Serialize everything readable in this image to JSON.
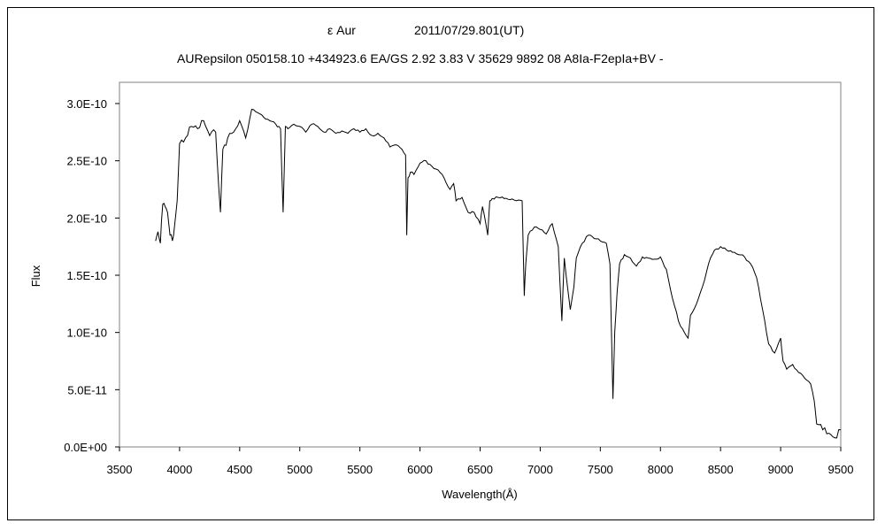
{
  "chart_data": {
    "type": "line",
    "title": "ε Aur",
    "date": "2011/07/29.801(UT)",
    "subtitle": "AURepsilon 050158.10 +434923.6 EA/GS 2.92 3.83 V 35629 9892 08 A8Ia-F2epIa+BV -",
    "xlabel": "Wavelength(Å)",
    "ylabel": "Flux",
    "xlim": [
      3500,
      9500
    ],
    "ylim": [
      0,
      3e-10
    ],
    "xticks": [
      "3500",
      "4000",
      "4500",
      "5000",
      "5500",
      "6000",
      "6500",
      "7000",
      "7500",
      "8000",
      "8500",
      "9000",
      "9500"
    ],
    "xtick_values": [
      3500,
      4000,
      4500,
      5000,
      5500,
      6000,
      6500,
      7000,
      7500,
      8000,
      8500,
      9000,
      9500
    ],
    "yticks": [
      "0.0E+00",
      "5.0E-11",
      "1.0E-10",
      "1.5E-10",
      "2.0E-10",
      "2.5E-10",
      "3.0E-10"
    ],
    "ytick_values": [
      0,
      5e-11,
      1e-10,
      1.5e-10,
      2e-10,
      2.5e-10,
      3e-10
    ],
    "grid": false,
    "line_color": "#000000",
    "series": [
      {
        "x": [
          3800,
          3820,
          3840,
          3860,
          3880,
          3900,
          3920,
          3940,
          3960,
          3980,
          4000,
          4050,
          4100,
          4150,
          4200,
          4250,
          4300,
          4340,
          4360,
          4400,
          4450,
          4500,
          4550,
          4600,
          4650,
          4700,
          4750,
          4800,
          4840,
          4861,
          4880,
          4900,
          4950,
          5000,
          5050,
          5100,
          5150,
          5200,
          5250,
          5300,
          5350,
          5400,
          5450,
          5500,
          5550,
          5600,
          5650,
          5700,
          5750,
          5800,
          5850,
          5880,
          5890,
          5900,
          5920,
          5950,
          6000,
          6050,
          6100,
          6150,
          6200,
          6250,
          6280,
          6300,
          6350,
          6400,
          6450,
          6500,
          6520,
          6563,
          6580,
          6600,
          6650,
          6700,
          6750,
          6800,
          6850,
          6867,
          6880,
          6900,
          6950,
          7000,
          7050,
          7100,
          7150,
          7180,
          7200,
          7250,
          7280,
          7300,
          7350,
          7400,
          7450,
          7500,
          7550,
          7580,
          7605,
          7620,
          7640,
          7660,
          7700,
          7750,
          7800,
          7850,
          7900,
          7950,
          8000,
          8050,
          8100,
          8150,
          8200,
          8230,
          8250,
          8300,
          8350,
          8400,
          8450,
          8500,
          8550,
          8600,
          8650,
          8700,
          8750,
          8800,
          8850,
          8900,
          8950,
          9000,
          9020,
          9050,
          9100,
          9150,
          9200,
          9250,
          9280,
          9300,
          9350,
          9400,
          9450,
          9500
        ],
        "values": [
          1.8e-10,
          1.88e-10,
          1.78e-10,
          2.12e-10,
          2.1e-10,
          2.05e-10,
          1.85e-10,
          1.8e-10,
          1.95e-10,
          2.15e-10,
          2.65e-10,
          2.7e-10,
          2.8e-10,
          2.78e-10,
          2.85e-10,
          2.72e-10,
          2.75e-10,
          2.05e-10,
          2.6e-10,
          2.7e-10,
          2.75e-10,
          2.85e-10,
          2.7e-10,
          2.95e-10,
          2.92e-10,
          2.88e-10,
          2.85e-10,
          2.82e-10,
          2.78e-10,
          2.05e-10,
          2.8e-10,
          2.78e-10,
          2.82e-10,
          2.8e-10,
          2.75e-10,
          2.82e-10,
          2.8e-10,
          2.75e-10,
          2.78e-10,
          2.74e-10,
          2.76e-10,
          2.74e-10,
          2.78e-10,
          2.75e-10,
          2.78e-10,
          2.72e-10,
          2.74e-10,
          2.7e-10,
          2.62e-10,
          2.64e-10,
          2.6e-10,
          2.55e-10,
          1.85e-10,
          2.35e-10,
          2.4e-10,
          2.38e-10,
          2.48e-10,
          2.5e-10,
          2.45e-10,
          2.42e-10,
          2.35e-10,
          2.25e-10,
          2.3e-10,
          2.15e-10,
          2.18e-10,
          2.05e-10,
          2.05e-10,
          1.95e-10,
          2.1e-10,
          1.85e-10,
          2.15e-10,
          2.17e-10,
          2.18e-10,
          2.17e-10,
          2.16e-10,
          2.15e-10,
          2.15e-10,
          1.32e-10,
          1.6e-10,
          1.85e-10,
          1.92e-10,
          1.9e-10,
          1.86e-10,
          1.95e-10,
          1.75e-10,
          1.1e-10,
          1.65e-10,
          1.2e-10,
          1.4e-10,
          1.65e-10,
          1.78e-10,
          1.85e-10,
          1.82e-10,
          1.8e-10,
          1.78e-10,
          1.6e-10,
          4.2e-11,
          1e-10,
          1.35e-10,
          1.6e-10,
          1.68e-10,
          1.65e-10,
          1.58e-10,
          1.66e-10,
          1.65e-10,
          1.64e-10,
          1.66e-10,
          1.55e-10,
          1.3e-10,
          1.1e-10,
          1e-10,
          9.5e-11,
          1.15e-10,
          1.25e-10,
          1.4e-10,
          1.6e-10,
          1.72e-10,
          1.75e-10,
          1.72e-10,
          1.7e-10,
          1.68e-10,
          1.66e-10,
          1.6e-10,
          1.48e-10,
          1.2e-10,
          9e-11,
          8.2e-11,
          9.5e-11,
          7.5e-11,
          6.8e-11,
          7.2e-11,
          6.5e-11,
          6e-11,
          5.5e-11,
          4e-11,
          2e-11,
          1.5e-11,
          1.2e-11,
          8e-12,
          1.5e-11
        ]
      }
    ]
  }
}
